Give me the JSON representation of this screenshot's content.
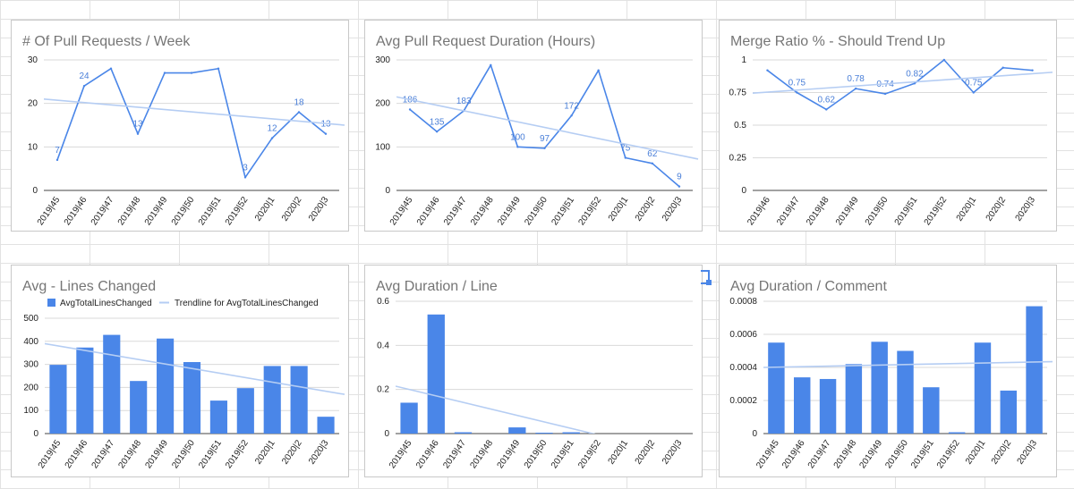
{
  "colors": {
    "series": "#4a86e8",
    "trend": "#b5cdf3",
    "grid": "#dadada",
    "title": "#757575",
    "label": "#4a7fd8"
  },
  "chart_data": [
    {
      "type": "line",
      "title": "# Of Pull Requests / Week",
      "categories": [
        "2019|45",
        "2019|46",
        "2019|47",
        "2019|48",
        "2019|49",
        "2019|50",
        "2019|51",
        "2019|52",
        "2020|1",
        "2020|2",
        "2020|3"
      ],
      "values": [
        7,
        24,
        28,
        13,
        27,
        27,
        28,
        3,
        12,
        18,
        13
      ],
      "data_labels": [
        "7",
        "24",
        "",
        "13",
        "",
        "",
        "",
        "3",
        "12",
        "18",
        "13"
      ],
      "yticks": [
        "0",
        "10",
        "20",
        "30"
      ],
      "ylim": [
        0,
        30
      ],
      "trendline": [
        21,
        15
      ],
      "grid": true
    },
    {
      "type": "line",
      "title": "Avg Pull Request Duration (Hours)",
      "categories": [
        "2019|45",
        "2019|46",
        "2019|47",
        "2019|48",
        "2019|49",
        "2019|50",
        "2019|51",
        "2019|52",
        "2020|1",
        "2020|2",
        "2020|3"
      ],
      "values": [
        186,
        135,
        183,
        288,
        100,
        97,
        172,
        276,
        75,
        62,
        9
      ],
      "data_labels": [
        "186",
        "135",
        "183",
        "",
        "100",
        "97",
        "172",
        "",
        "75",
        "62",
        "9"
      ],
      "yticks": [
        "0",
        "100",
        "200",
        "300"
      ],
      "ylim": [
        0,
        300
      ],
      "trendline": [
        215,
        72
      ],
      "grid": true
    },
    {
      "type": "line",
      "title": "Merge Ratio % - Should Trend Up",
      "categories": [
        "2019|46",
        "2019|47",
        "2019|48",
        "2019|49",
        "2019|50",
        "2019|51",
        "2019|52",
        "2020|1",
        "2020|2",
        "2020|3"
      ],
      "values": [
        0.92,
        0.75,
        0.62,
        0.78,
        0.74,
        0.82,
        1.0,
        0.75,
        0.94,
        0.92
      ],
      "data_labels": [
        "",
        "0.75",
        "0.62",
        "0.78",
        "0.74",
        "0.82",
        "",
        "0.75",
        "",
        ""
      ],
      "yticks": [
        "0",
        "0.25",
        "0.5",
        "0.75",
        "1"
      ],
      "ylim": [
        0,
        1
      ],
      "trendline": [
        0.745,
        0.905
      ],
      "grid": true
    },
    {
      "type": "bar",
      "title": "Avg - Lines Changed",
      "legend": [
        "AvgTotalLinesChanged",
        "Trendline for AvgTotalLinesChanged"
      ],
      "legend_position": "top",
      "categories": [
        "2019|45",
        "2019|46",
        "2019|47",
        "2019|48",
        "2019|49",
        "2019|50",
        "2019|51",
        "2019|52",
        "2020|1",
        "2020|2",
        "2020|3"
      ],
      "values": [
        298,
        373,
        428,
        228,
        412,
        310,
        143,
        197,
        293,
        293,
        73
      ],
      "yticks": [
        "0",
        "100",
        "200",
        "300",
        "400",
        "500"
      ],
      "ylim": [
        0,
        500
      ],
      "trendline": [
        390,
        170
      ],
      "grid": true
    },
    {
      "type": "bar",
      "title": "Avg Duration / Line",
      "categories": [
        "2019|45",
        "2019|46",
        "2019|47",
        "2019|48",
        "2019|49",
        "2019|50",
        "2019|51",
        "2019|52",
        "2020|1",
        "2020|2",
        "2020|3"
      ],
      "values": [
        0.14,
        0.54,
        0.006,
        0.0,
        0.028,
        0.004,
        0.006,
        0.0,
        0.0,
        0.0,
        0.0
      ],
      "yticks": [
        "0",
        "0.2",
        "0.4",
        "0.6"
      ],
      "ylim": [
        0,
        0.6
      ],
      "trendline": [
        0.215,
        -0.115
      ],
      "grid": true
    },
    {
      "type": "bar",
      "title": "Avg Duration / Comment",
      "categories": [
        "2019|45",
        "2019|46",
        "2019|47",
        "2019|48",
        "2019|49",
        "2019|50",
        "2019|51",
        "2019|52",
        "2020|1",
        "2020|2",
        "2020|3"
      ],
      "values": [
        0.00055,
        0.00034,
        0.00033,
        0.00042,
        0.000555,
        0.0005,
        0.00028,
        8e-06,
        0.00055,
        0.00026,
        0.00077
      ],
      "yticks": [
        "0",
        "0.0002",
        "0.0004",
        "0.0006",
        "0.0008"
      ],
      "ylim": [
        0,
        0.0008
      ],
      "trendline": [
        0.0004,
        0.000435
      ],
      "grid": true
    }
  ]
}
